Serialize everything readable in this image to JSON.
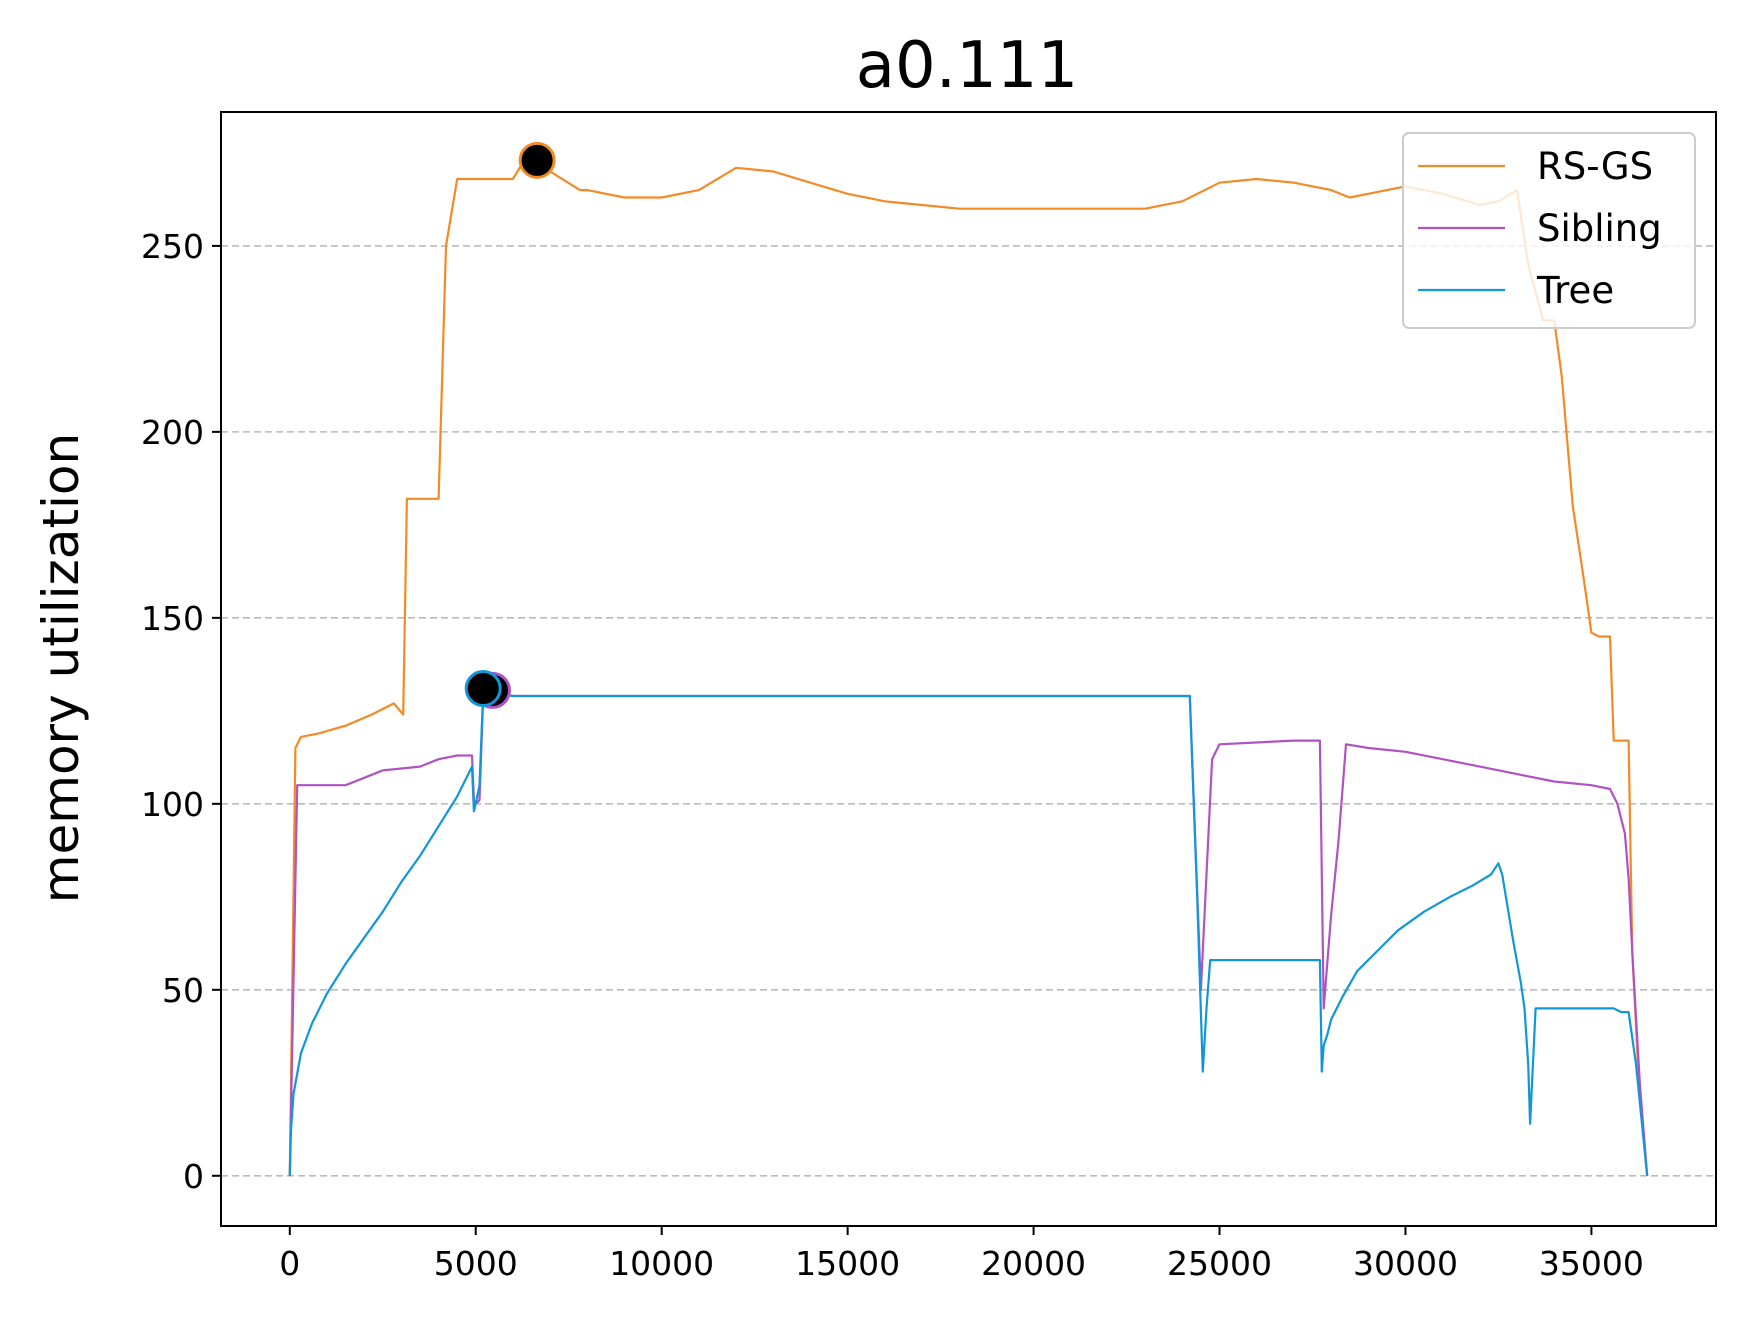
{
  "chart_data": {
    "type": "line",
    "title": "a0.111",
    "xlabel": "",
    "ylabel": "memory utilization",
    "xlim": [
      -1850,
      38350
    ],
    "ylim": [
      -13.5,
      286
    ],
    "xticks": [
      0,
      5000,
      10000,
      15000,
      20000,
      25000,
      30000,
      35000
    ],
    "xtick_labels": [
      "0",
      "5000",
      "10000",
      "15000",
      "20000",
      "25000",
      "30000",
      "35000"
    ],
    "yticks": [
      0,
      50,
      100,
      150,
      200,
      250
    ],
    "ytick_labels": [
      "0",
      "50",
      "100",
      "150",
      "200",
      "250"
    ],
    "grid": {
      "axis": "y",
      "style": "dashed",
      "color": "#bbbbbb"
    },
    "legend_position": "top-right",
    "series": [
      {
        "name": "RS-GS",
        "color": "#f28a25",
        "x": [
          0,
          150,
          300,
          800,
          1500,
          2200,
          2800,
          3050,
          3150,
          3200,
          4000,
          4200,
          4500,
          4700,
          4800,
          4900,
          5000,
          5500,
          6000,
          6300,
          7000,
          7800,
          8000,
          8500,
          9000,
          10000,
          11000,
          12000,
          13000,
          14000,
          15000,
          16000,
          17000,
          18000,
          19000,
          20000,
          21000,
          22000,
          23000,
          24000,
          25000,
          26000,
          27000,
          28000,
          28500,
          29000,
          30000,
          31000,
          32000,
          32500,
          33000,
          33300,
          33700,
          34000,
          34200,
          34500,
          34800,
          35000,
          35200,
          35500,
          35600,
          35800,
          36000,
          36100,
          36300,
          36500
        ],
        "y": [
          0,
          115,
          118,
          119,
          121,
          124,
          127,
          124,
          182,
          182,
          182,
          250,
          268,
          268,
          268,
          268,
          268,
          268,
          268,
          273,
          270,
          265,
          265,
          264,
          263,
          263,
          265,
          271,
          270,
          267,
          264,
          262,
          261,
          260,
          260,
          260,
          260,
          260,
          260,
          262,
          267,
          268,
          267,
          265,
          263,
          264,
          266,
          264,
          261,
          262,
          265,
          245,
          230,
          230,
          215,
          180,
          160,
          146,
          145,
          145,
          117,
          117,
          117,
          60,
          20,
          0
        ]
      },
      {
        "name": "Sibling",
        "color": "#b053c2",
        "x": [
          0,
          200,
          1500,
          2000,
          2500,
          3500,
          4000,
          4500,
          4900,
          4950,
          5000,
          5100,
          5200,
          5400,
          6000,
          10000,
          15000,
          20000,
          24000,
          24200,
          24500,
          24800,
          25000,
          27000,
          27700,
          27800,
          28000,
          28200,
          28400,
          29000,
          30000,
          31000,
          32000,
          33000,
          34000,
          35000,
          35500,
          35700,
          35900,
          36000,
          36100,
          36300,
          36500
        ],
        "y": [
          0,
          105,
          105,
          107,
          109,
          110,
          112,
          113,
          113,
          101,
          100,
          101,
          129,
          130,
          129,
          129,
          129,
          129,
          129,
          129,
          50,
          112,
          116,
          117,
          117,
          45,
          70,
          90,
          116,
          115,
          114,
          112,
          110,
          108,
          106,
          105,
          104,
          100,
          92,
          80,
          60,
          25,
          0
        ]
      },
      {
        "name": "Tree",
        "color": "#1197d8",
        "x": [
          0,
          30,
          100,
          300,
          600,
          1000,
          1500,
          2000,
          2500,
          3000,
          3500,
          4000,
          4500,
          4900,
          4950,
          5000,
          5100,
          5200,
          5500,
          6000,
          10000,
          15000,
          20000,
          24200,
          24400,
          24550,
          24650,
          24750,
          25000,
          27500,
          27700,
          27750,
          27800,
          27900,
          28000,
          28300,
          28700,
          29200,
          29800,
          30500,
          31200,
          31800,
          32300,
          32500,
          32600,
          32900,
          33100,
          33200,
          33300,
          33350,
          33500,
          34000,
          35000,
          35600,
          35800,
          36000,
          36200,
          36400,
          36500
        ],
        "y": [
          0,
          12,
          22,
          33,
          41,
          49,
          57,
          64,
          71,
          79,
          86,
          94,
          102,
          110,
          98,
          100,
          105,
          130,
          130,
          129,
          129,
          129,
          129,
          129,
          75,
          28,
          45,
          58,
          58,
          58,
          58,
          28,
          35,
          38,
          42,
          48,
          55,
          60,
          66,
          71,
          75,
          78,
          81,
          84,
          81,
          63,
          52,
          45,
          30,
          14,
          45,
          45,
          45,
          45,
          44,
          44,
          30,
          10,
          0
        ]
      }
    ],
    "markers": [
      {
        "series": "RS-GS",
        "x": 6650,
        "y": 273,
        "fill": "#000000",
        "edge": "#f28a25"
      },
      {
        "series": "Sibling",
        "x": 5450,
        "y": 130.5,
        "fill": "#000000",
        "edge": "#b053c2"
      },
      {
        "series": "Tree",
        "x": 5200,
        "y": 131,
        "fill": "#000000",
        "edge": "#1197d8"
      }
    ]
  }
}
